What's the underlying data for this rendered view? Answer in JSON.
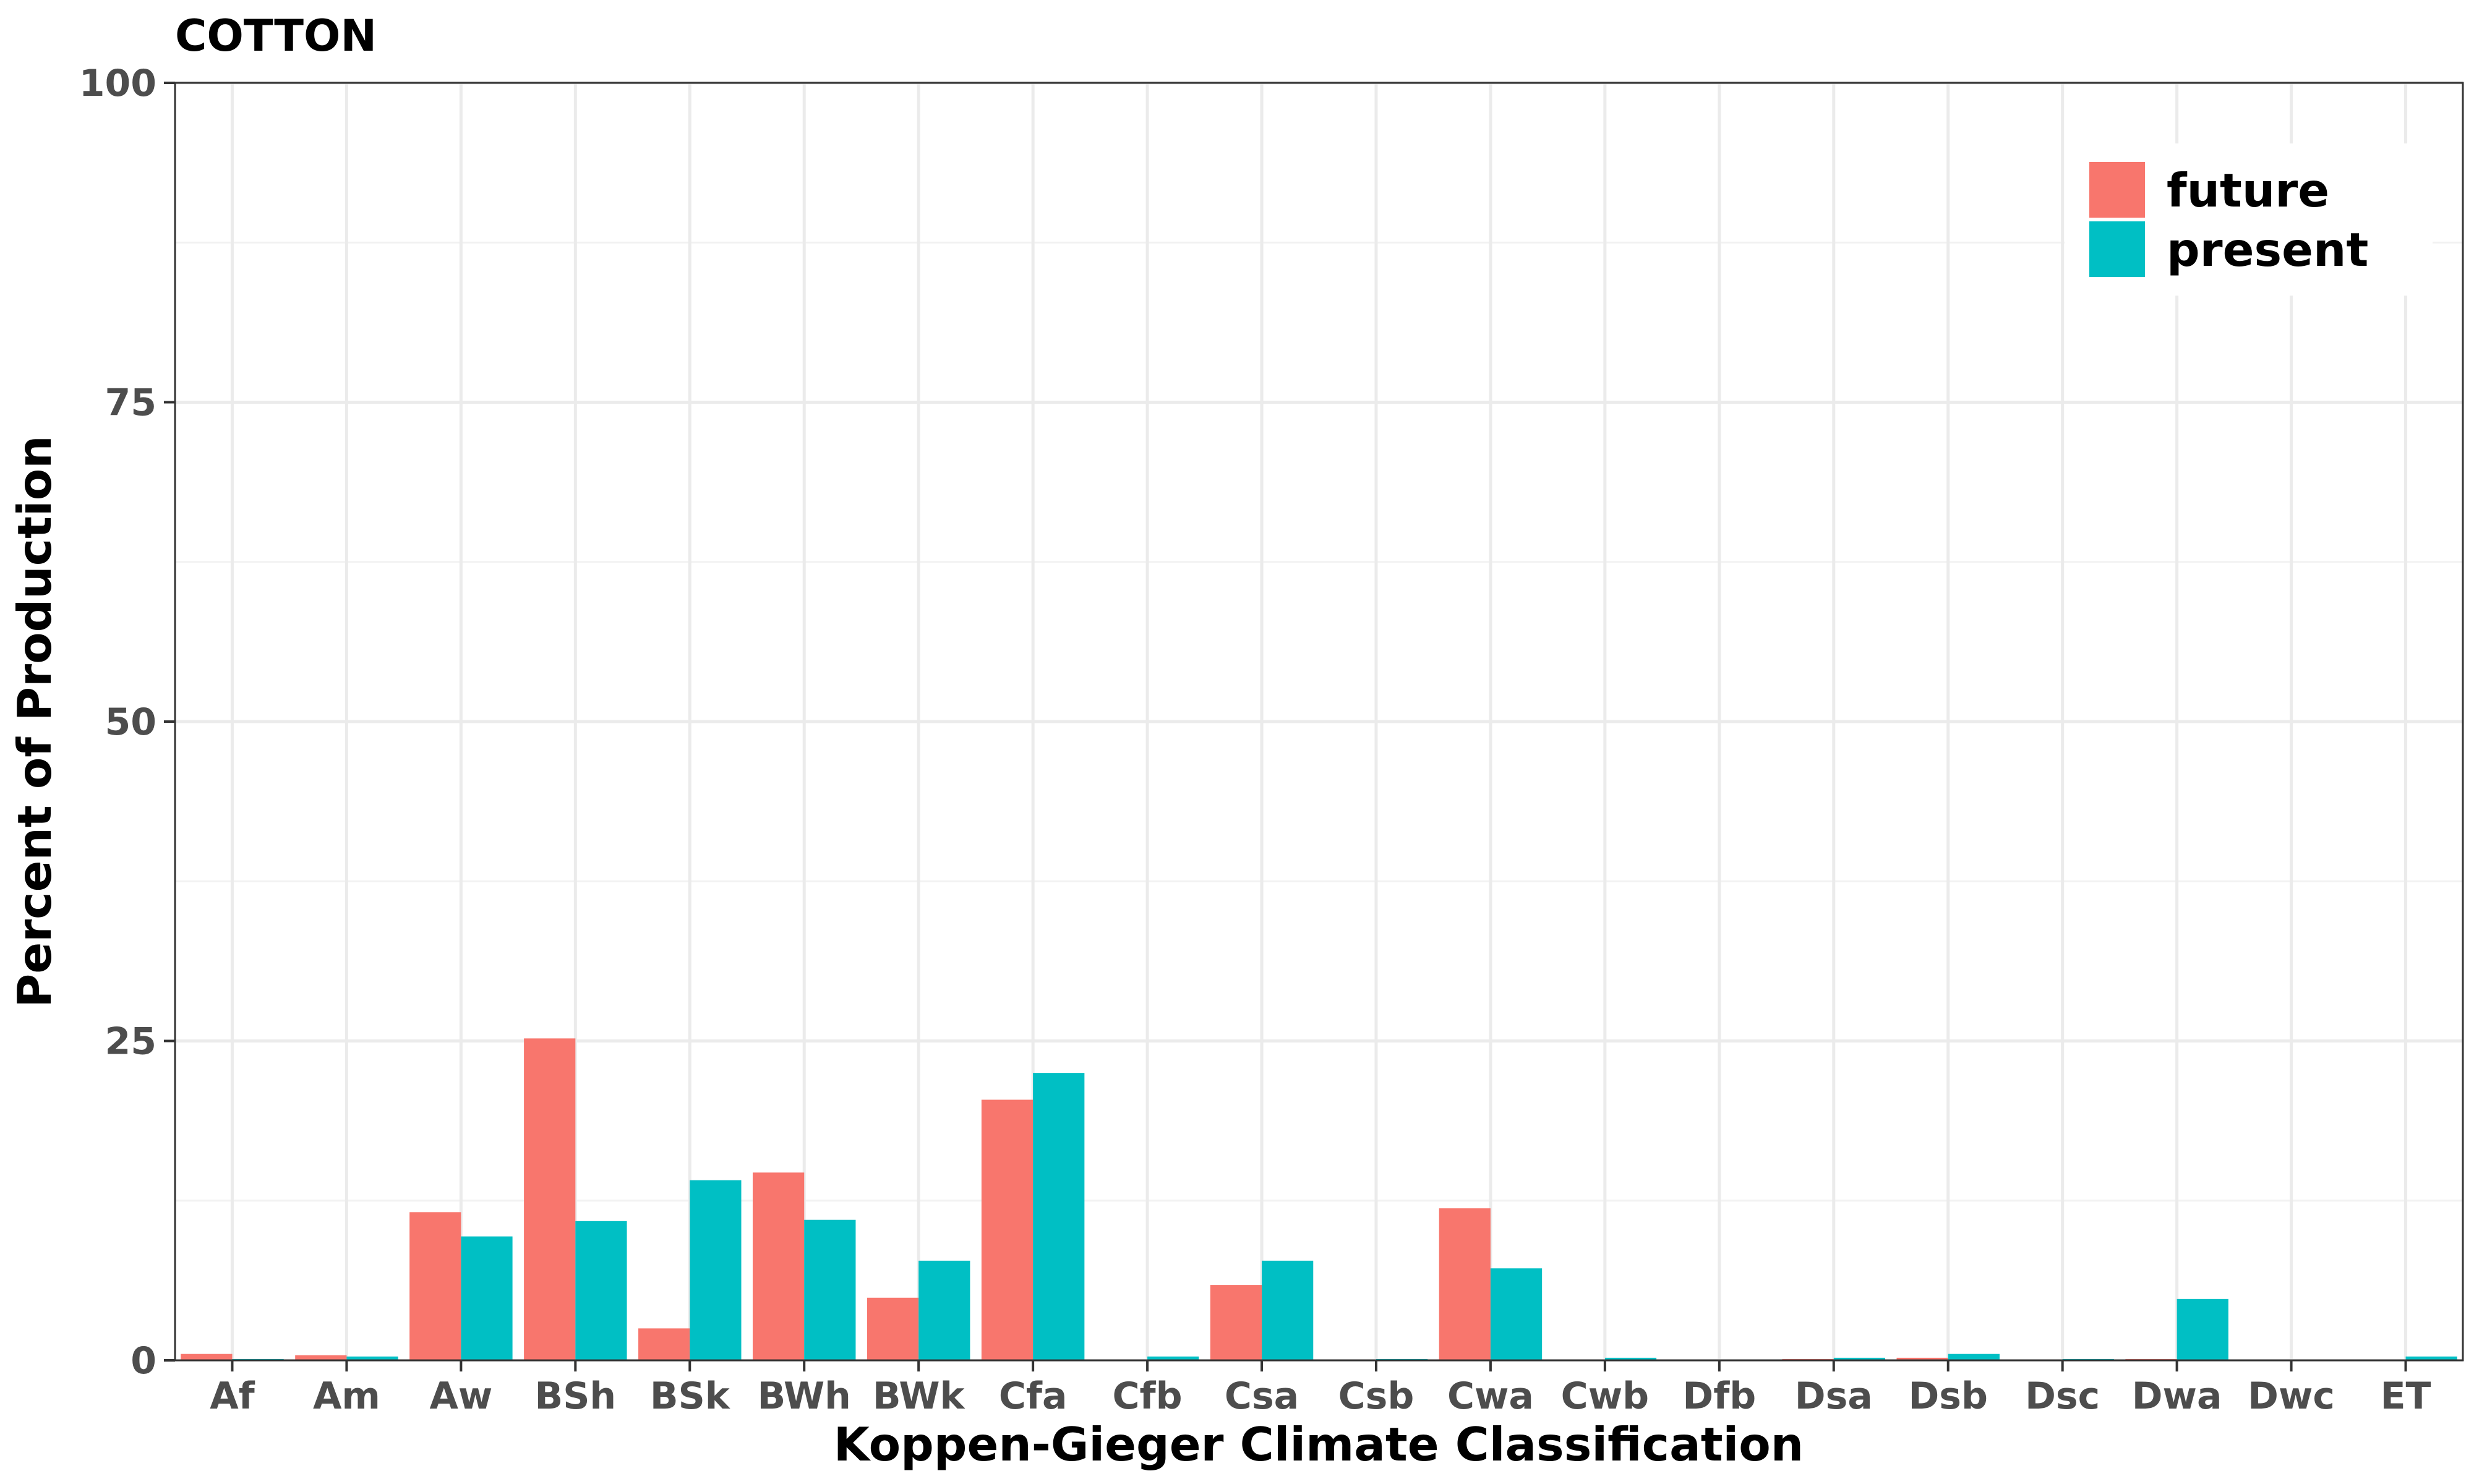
{
  "chart_data": {
    "type": "bar",
    "title": "COTTON",
    "xlabel": "Koppen-Gieger Climate Classification",
    "ylabel": "Percent of Production",
    "ylim": [
      0,
      100
    ],
    "yticks": [
      0,
      25,
      50,
      75,
      100
    ],
    "grid": true,
    "legend_position": "top-right",
    "categories": [
      "Af",
      "Am",
      "Aw",
      "BSh",
      "BSk",
      "BWh",
      "BWk",
      "Cfa",
      "Cfb",
      "Csa",
      "Csb",
      "Cwa",
      "Cwb",
      "Dfb",
      "Dsa",
      "Dsb",
      "Dsc",
      "Dwa",
      "Dwc",
      "ET"
    ],
    "series": [
      {
        "name": "future",
        "color": "#F8766D",
        "values": [
          0.5,
          0.4,
          11.6,
          25.2,
          2.5,
          14.7,
          4.9,
          20.4,
          0,
          5.9,
          0,
          11.9,
          0,
          0,
          0.1,
          0.2,
          0,
          0.1,
          0,
          0
        ]
      },
      {
        "name": "present",
        "color": "#00BFC4",
        "values": [
          0.1,
          0.3,
          9.7,
          10.9,
          14.1,
          11.0,
          7.8,
          22.5,
          0.3,
          7.8,
          0.1,
          7.2,
          0.2,
          0,
          0.2,
          0.5,
          0.1,
          4.8,
          0,
          0.3
        ]
      }
    ]
  }
}
